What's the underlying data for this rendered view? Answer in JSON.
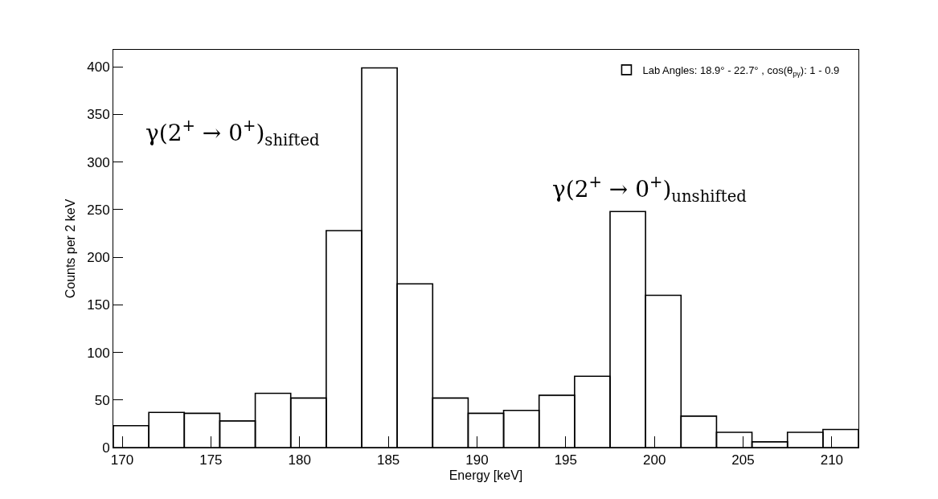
{
  "chart_data": {
    "type": "histogram",
    "xlabel": "Energy [keV]",
    "ylabel": "Counts per 2 keV",
    "bins": [
      169.5,
      171.5,
      173.5,
      175.5,
      177.5,
      179.5,
      181.5,
      183.5,
      185.5,
      187.5,
      189.5,
      191.5,
      193.5,
      195.5,
      197.5,
      199.5,
      201.5,
      203.5,
      205.5,
      207.5,
      209.5,
      211.5
    ],
    "series": [
      {
        "name": "Lab Angles: 18.9° - 22.7° , cos(θ$_{pγ}$): 1 - 0.9",
        "color": "#000000",
        "values": [
          23,
          37,
          36,
          28,
          57,
          52,
          228,
          399,
          172,
          52,
          36,
          39,
          55,
          75,
          248,
          160,
          33,
          16,
          6,
          16,
          19
        ]
      }
    ],
    "xlim": [
      169.5,
      211.5
    ],
    "xticks": [
      170,
      175,
      180,
      185,
      190,
      195,
      200,
      205,
      210
    ],
    "ylim": [
      0,
      418
    ],
    "yticks": [
      0,
      50,
      100,
      150,
      200,
      250,
      300,
      350,
      400
    ],
    "grid": false,
    "legend": "top right",
    "annotations": [
      "γ(2$^{+}$ → 0$^{+}$)$_{shifted}$",
      "γ(2$^{+}$ → 0$^{+}$)$_{unshifted}$"
    ]
  }
}
